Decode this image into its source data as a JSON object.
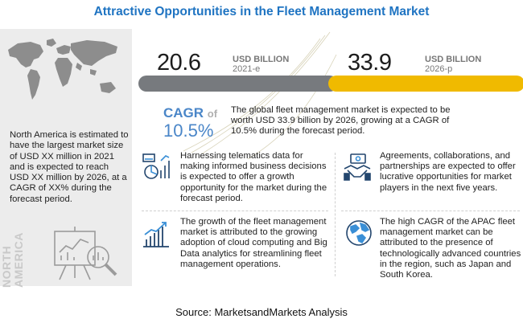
{
  "title": "Attractive Opportunities in the Fleet Management Market",
  "left_panel": {
    "description": "North America is estimated to have the largest market size of USD XX million in 2021 and is expected to reach USD XX million by 2026, at a CAGR of XX% during the forecast period.",
    "vertical_label": "NORTH AMERICA",
    "icons": [
      "world-map-icon",
      "presentation-board-icon"
    ]
  },
  "stats": [
    {
      "value": "20.6",
      "unit": "USD BILLION",
      "year": "2021-e",
      "fill_fraction": 0.61,
      "color": "#777a7e"
    },
    {
      "value": "33.9",
      "unit": "USD BILLION",
      "year": "2026-p",
      "fill_fraction": 1.0,
      "color": "#f0ba00"
    }
  ],
  "cagr": {
    "label": "CAGR",
    "of": "of",
    "value": "10.5%",
    "description": "The global fleet management market is expected to be worth USD 33.9 billion by 2026, growing at a CAGR of 10.5% during the forecast period."
  },
  "bullets": [
    {
      "icon": "telematics-chart-icon",
      "text": "Harnessing telematics data for making informed business decisions is expected to offer a growth opportunity for the market during the forecast period."
    },
    {
      "icon": "handshake-money-icon",
      "text": "Agreements, collaborations, and partnerships are expected to offer lucrative opportunities for market players in the next five years."
    },
    {
      "icon": "growth-bar-chart-icon",
      "text": "The growth of the fleet management market is attributed to the growing adoption of cloud computing and Big Data analytics for streamlining fleet management operations."
    },
    {
      "icon": "globe-icon",
      "text": "The high CAGR of the APAC fleet management market can be attributed to the presence of technologically advanced countries in the region, such as Japan and South Korea."
    }
  ],
  "source": "Source: MarketsandMarkets Analysis",
  "colors": {
    "title_blue": "#1f74c2",
    "cagr_blue": "#4a86c8",
    "bar_gray": "#777a7e",
    "bar_yellow": "#f0ba00",
    "panel_gray": "#ececec",
    "icon_navy": "#23466e"
  }
}
